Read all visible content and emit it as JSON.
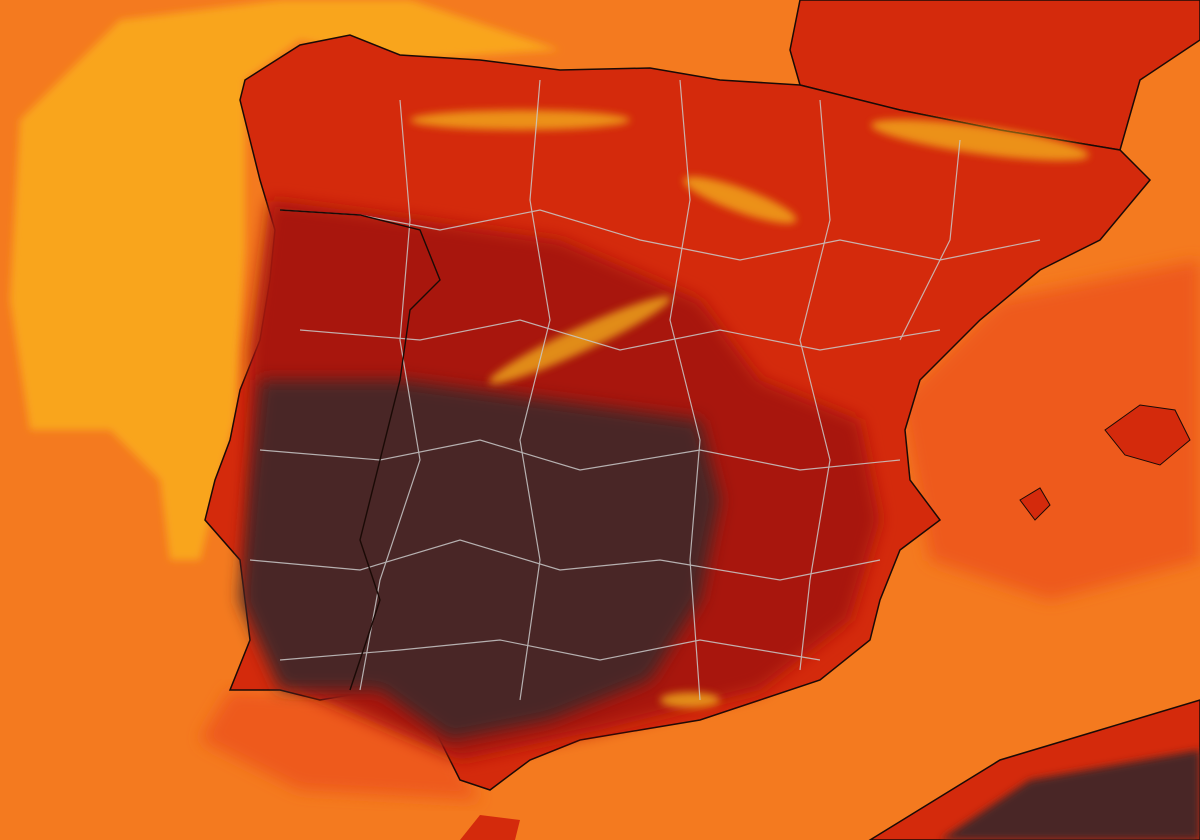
{
  "map": {
    "colors": {
      "sea": "#f47a1f",
      "sea_cool": "#f9a51c",
      "sea_warm": "#ee5a1c",
      "land_hot": "#d42a0c",
      "land_very_hot": "#a8160a",
      "land_extreme": "#4a2626",
      "mountains": "#f4b41f",
      "borders": "#c9c9c9",
      "coast": "#1a0a06"
    },
    "regions": [
      "iberian-peninsula",
      "france",
      "balearic-islands",
      "north-africa"
    ]
  }
}
